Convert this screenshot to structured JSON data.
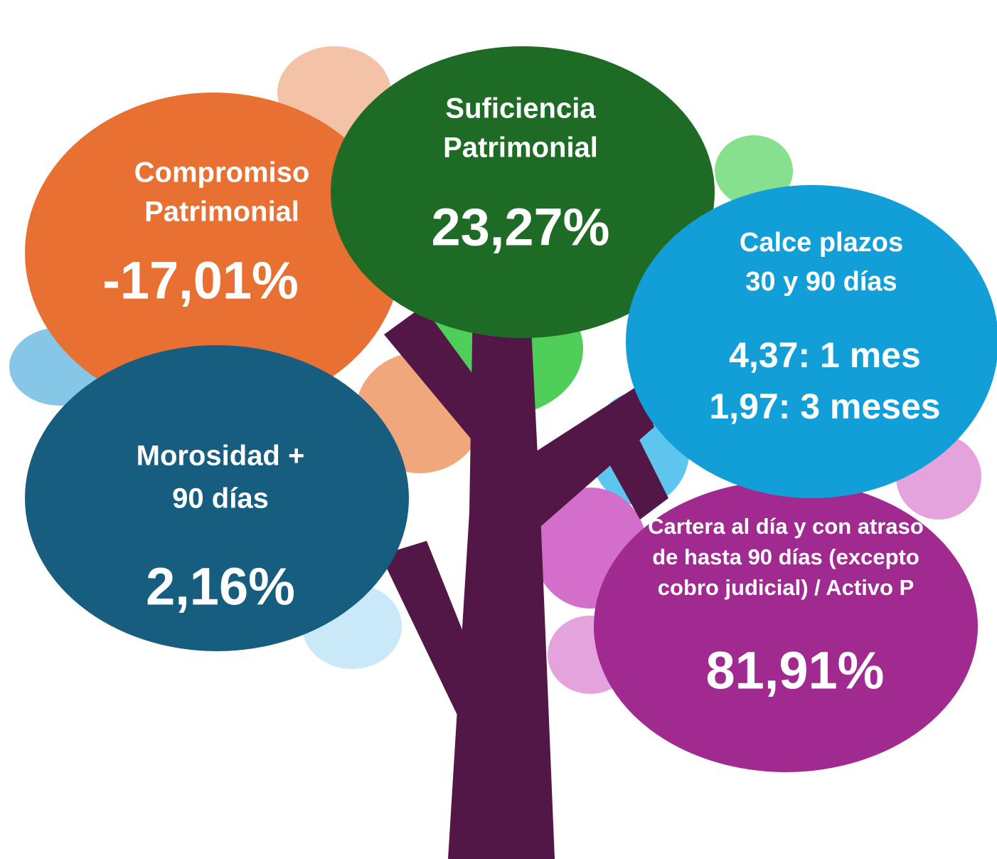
{
  "nodes": [
    {
      "label": [
        "Compromiso",
        "Patrimonial"
      ],
      "values": [
        "-17,01%"
      ]
    },
    {
      "label": [
        "Suficiencia",
        "Patrimonial"
      ],
      "values": [
        "23,27%"
      ]
    },
    {
      "label": [
        "Calce plazos",
        "30 y 90 días"
      ],
      "values": [
        "4,37:  1 mes",
        "1,97: 3 meses"
      ]
    },
    {
      "label": [
        "Morosidad +",
        "90 días"
      ],
      "values": [
        "2,16%"
      ]
    },
    {
      "label": [
        "Cartera al día y con atraso",
        "de hasta 90 días (excepto",
        "cobro judicial) / Activo P"
      ],
      "values": [
        "81,91%"
      ]
    }
  ]
}
